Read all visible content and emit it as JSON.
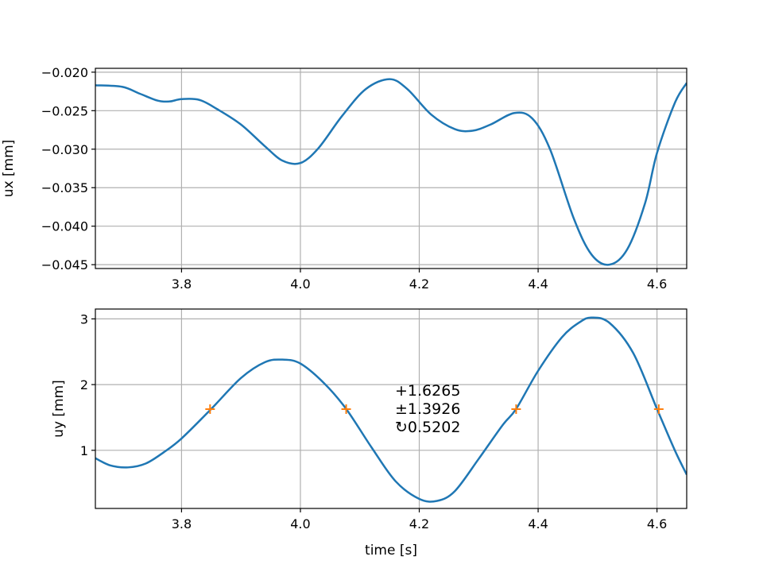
{
  "chart_data": [
    {
      "type": "line",
      "xlim": [
        3.655,
        4.65
      ],
      "ylim": [
        -0.0455,
        -0.0195
      ],
      "xticks": [
        3.8,
        4.0,
        4.2,
        4.4,
        4.6
      ],
      "xtick_labels": [
        "3.8",
        "4.0",
        "4.2",
        "4.4",
        "4.6"
      ],
      "yticks": [
        -0.045,
        -0.04,
        -0.035,
        -0.03,
        -0.025,
        -0.02
      ],
      "ytick_labels": [
        "−0.045",
        "−0.040",
        "−0.035",
        "−0.030",
        "−0.025",
        "−0.020"
      ],
      "xlabel": "",
      "ylabel": "ux [mm]",
      "grid": true,
      "color": "#1f77b4",
      "x": [
        3.655,
        3.7,
        3.73,
        3.76,
        3.78,
        3.8,
        3.83,
        3.86,
        3.9,
        3.94,
        3.97,
        4.0,
        4.03,
        4.07,
        4.11,
        4.15,
        4.18,
        4.22,
        4.26,
        4.29,
        4.32,
        4.36,
        4.39,
        4.42,
        4.46,
        4.49,
        4.52,
        4.55,
        4.58,
        4.6,
        4.63,
        4.65
      ],
      "y": [
        -0.0217,
        -0.0219,
        -0.0228,
        -0.0237,
        -0.0238,
        -0.0235,
        -0.0236,
        -0.0248,
        -0.0268,
        -0.0296,
        -0.0315,
        -0.0318,
        -0.0299,
        -0.0257,
        -0.0222,
        -0.0209,
        -0.0222,
        -0.0255,
        -0.0274,
        -0.0276,
        -0.0268,
        -0.0253,
        -0.026,
        -0.03,
        -0.039,
        -0.0437,
        -0.045,
        -0.043,
        -0.037,
        -0.0305,
        -0.024,
        -0.0214
      ]
    },
    {
      "type": "line",
      "xlim": [
        3.655,
        4.65
      ],
      "ylim": [
        0.115,
        3.15
      ],
      "xticks": [
        3.8,
        4.0,
        4.2,
        4.4,
        4.6
      ],
      "xtick_labels": [
        "3.8",
        "4.0",
        "4.2",
        "4.4",
        "4.6"
      ],
      "yticks": [
        1,
        2,
        3
      ],
      "ytick_labels": [
        "1",
        "2",
        "3"
      ],
      "xlabel": "time [s]",
      "ylabel": "uy [mm]",
      "grid": true,
      "color": "#1f77b4",
      "marker_color": "#ff7f0e",
      "x": [
        3.655,
        3.68,
        3.71,
        3.74,
        3.77,
        3.8,
        3.85,
        3.9,
        3.94,
        3.97,
        4.0,
        4.04,
        4.077,
        4.12,
        4.16,
        4.2,
        4.23,
        4.26,
        4.3,
        4.34,
        4.363,
        4.4,
        4.44,
        4.47,
        4.49,
        4.52,
        4.56,
        4.6,
        4.63,
        4.65
      ],
      "y": [
        0.88,
        0.77,
        0.74,
        0.8,
        0.97,
        1.18,
        1.63,
        2.1,
        2.34,
        2.38,
        2.32,
        2.02,
        1.63,
        1.04,
        0.53,
        0.26,
        0.23,
        0.38,
        0.87,
        1.38,
        1.63,
        2.21,
        2.72,
        2.95,
        3.02,
        2.94,
        2.48,
        1.63,
        1.0,
        0.63
      ],
      "markers": {
        "x": [
          3.848,
          4.077,
          4.363,
          4.603
        ],
        "y": [
          1.6265,
          1.6265,
          1.6265,
          1.6265
        ]
      },
      "annotation": [
        "+1.6265",
        "±1.3926",
        "↻0.5202"
      ]
    }
  ]
}
